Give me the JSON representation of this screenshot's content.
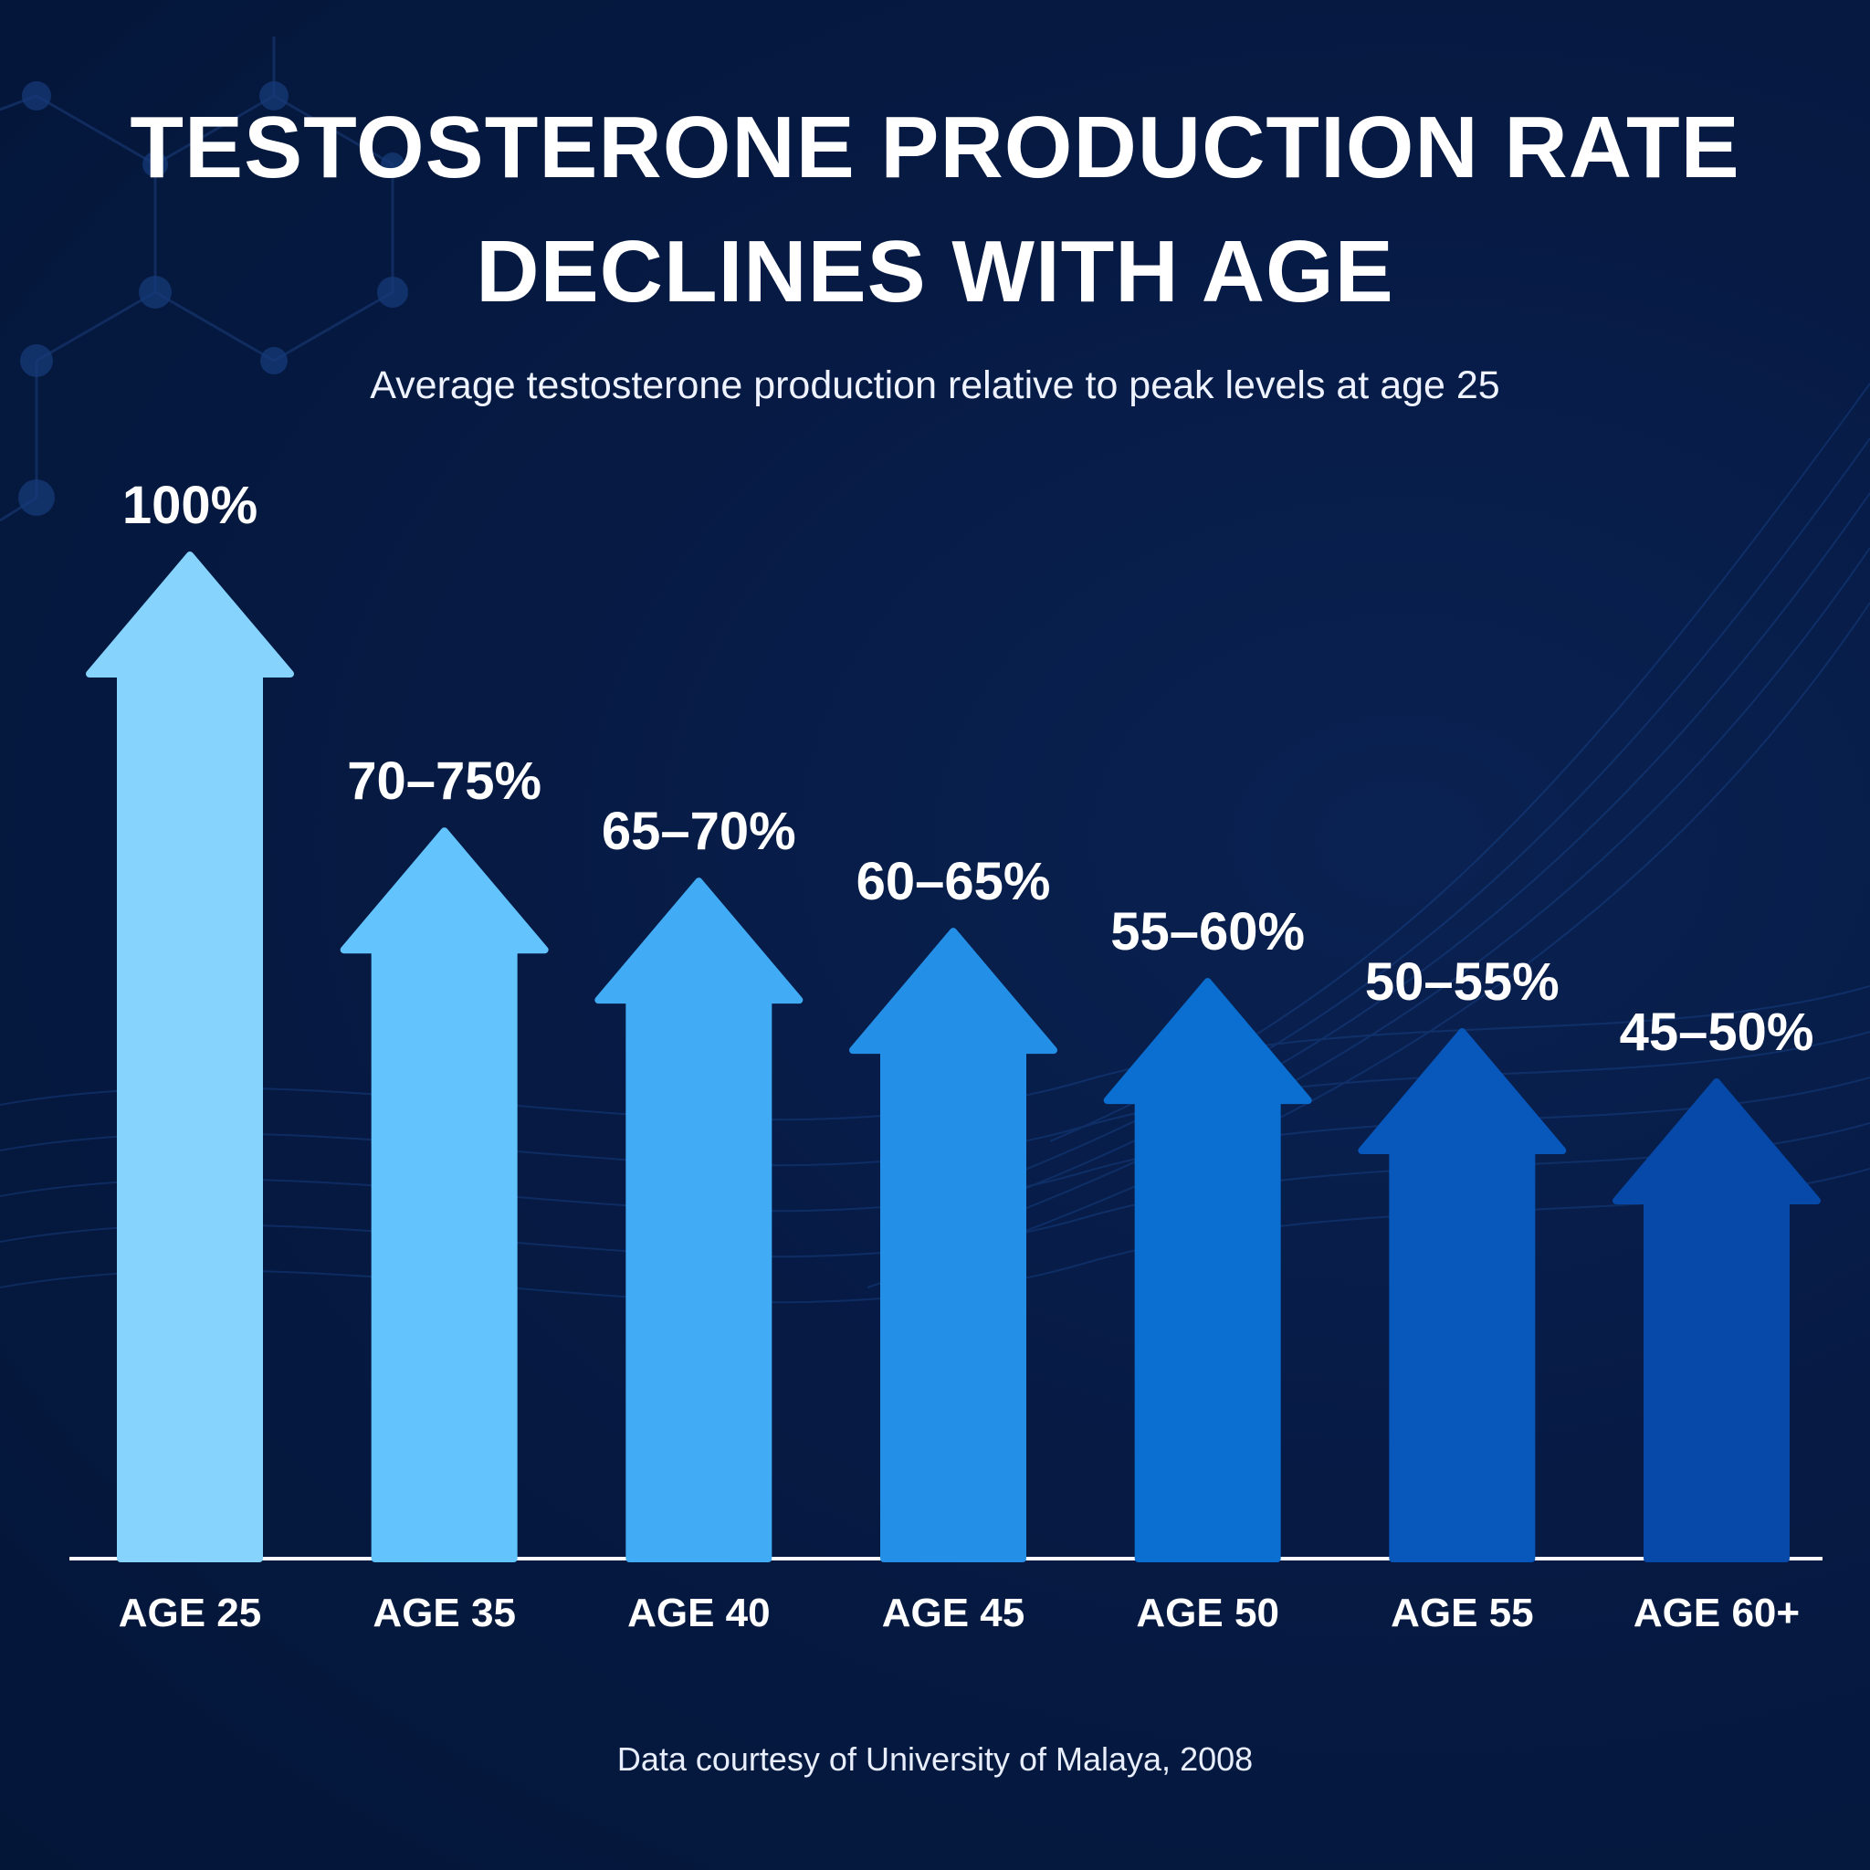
{
  "title_lines": [
    "TESTOSTERONE PRODUCTION RATE",
    "DECLINES WITH AGE"
  ],
  "subtitle": "Average testosterone production relative to peak levels at age 25",
  "footer": "Data courtesy of University of Malaya, 2008",
  "colors": {
    "background": "#061a44",
    "baseline": "#ffffff",
    "text": "#ffffff"
  },
  "chart_data": {
    "type": "bar",
    "bar_style": "upward arrows",
    "title": "TESTOSTERONE PRODUCTION RATE DECLINES WITH AGE",
    "xlabel": "",
    "ylabel": "",
    "ylim": [
      0,
      100
    ],
    "grid": false,
    "categories": [
      "AGE 25",
      "AGE 35",
      "AGE 40",
      "AGE 45",
      "AGE 50",
      "AGE 55",
      "AGE 60+"
    ],
    "data_labels": [
      "100%",
      "70–75%",
      "65–70%",
      "60–65%",
      "55–60%",
      "50–55%",
      "45–50%"
    ],
    "ranges": [
      [
        100,
        100
      ],
      [
        70,
        75
      ],
      [
        65,
        70
      ],
      [
        60,
        65
      ],
      [
        55,
        60
      ],
      [
        50,
        55
      ],
      [
        45,
        50
      ]
    ],
    "values": [
      100,
      72.5,
      67.5,
      62.5,
      57.5,
      52.5,
      47.5
    ],
    "bar_colors": [
      "#86d3fd",
      "#62c3fd",
      "#41acf5",
      "#248fe6",
      "#0a6fd0",
      "#0857bb",
      "#0649a8"
    ]
  }
}
